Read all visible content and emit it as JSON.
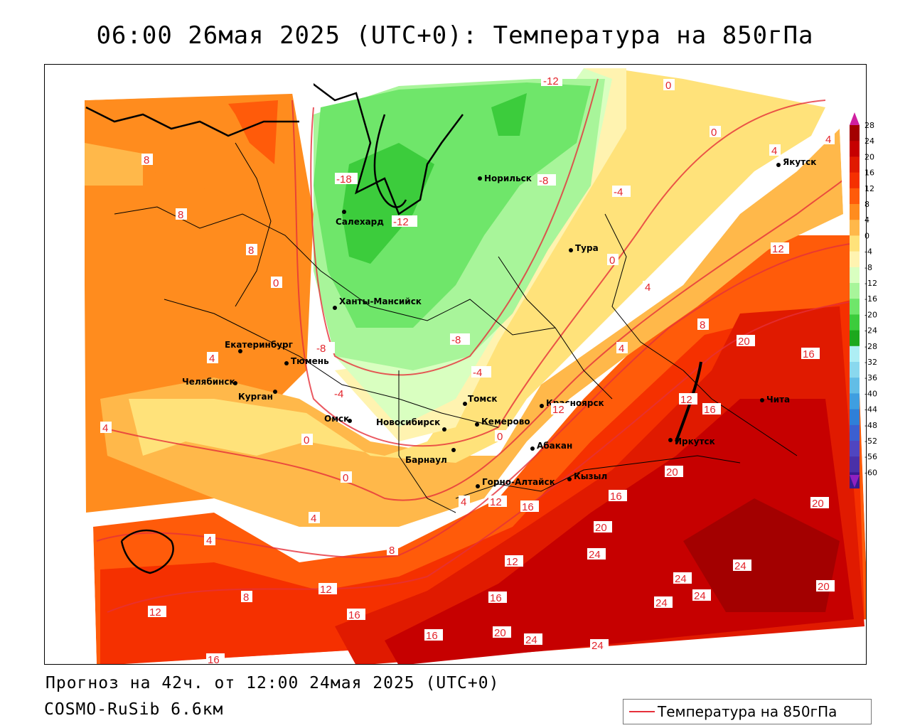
{
  "title": "06:00 26мая 2025 (UTC+0): Температура на 850гПа",
  "footer": {
    "forecast": "Прогноз на 42ч. от 12:00 24мая 2025 (UTC+0)",
    "model": "COSMO-RuSib 6.6км"
  },
  "legend": {
    "label": "Температура на 850гПа",
    "line_color": "#e6303a"
  },
  "colorbar": {
    "ticks": [
      "28",
      "24",
      "20",
      "16",
      "12",
      "8",
      "4",
      "0",
      "-4",
      "-8",
      "-12",
      "-16",
      "-20",
      "-24",
      "-28",
      "-32",
      "-36",
      "-40",
      "-44",
      "-48",
      "-52",
      "-56",
      "-60"
    ],
    "colors": [
      "#a30000",
      "#c60000",
      "#e01a00",
      "#f53000",
      "#ff5b0a",
      "#ff8c1e",
      "#ffb84a",
      "#ffe27a",
      "#fff3b0",
      "#d9ffc0",
      "#a8f59a",
      "#6fe66a",
      "#3ccc3c",
      "#1da81d",
      "#aeeef4",
      "#8ad8ee",
      "#62bde6",
      "#3f9ee0",
      "#2f7fd8",
      "#3c5fd0",
      "#5045c0",
      "#4a30a8",
      "#3a1a90"
    ],
    "top_arrow_color": "#d020a0",
    "bottom_arrow_color": "#9020c0"
  },
  "cities": [
    {
      "name": "Норильск"
    },
    {
      "name": "Якутск"
    },
    {
      "name": "Салехард"
    },
    {
      "name": "Тура"
    },
    {
      "name": "Ханты-Мансийск"
    },
    {
      "name": "Екатеринбург"
    },
    {
      "name": "Тюмень"
    },
    {
      "name": "Челябинск"
    },
    {
      "name": "Курган"
    },
    {
      "name": "Омск"
    },
    {
      "name": "Новосибирск"
    },
    {
      "name": "Томск"
    },
    {
      "name": "Кемерово"
    },
    {
      "name": "Красноярск"
    },
    {
      "name": "Барнаул"
    },
    {
      "name": "Абакан"
    },
    {
      "name": "Горно-Алтайск"
    },
    {
      "name": "Кызыл"
    },
    {
      "name": "Иркутск"
    },
    {
      "name": "Чита"
    }
  ],
  "contour_labels": [
    "-12",
    "0",
    "0",
    "4",
    "-18",
    "-8",
    "-4",
    "8",
    "4",
    "8",
    "-12",
    "12",
    "8",
    "0",
    "4",
    "-8",
    "8",
    "20",
    "16",
    "4",
    "-8",
    "-4",
    "12",
    "16",
    "4",
    "0",
    "12",
    "0",
    "20",
    "0",
    "4",
    "12",
    "16",
    "16",
    "20",
    "4",
    "20",
    "8",
    "24",
    "12",
    "24",
    "24",
    "16",
    "24",
    "24",
    "12",
    "20",
    "24",
    "16",
    "20",
    "24",
    "16",
    "12",
    "8",
    "4",
    "16",
    "20",
    "-4",
    "0",
    "-4",
    "4",
    "12"
  ]
}
